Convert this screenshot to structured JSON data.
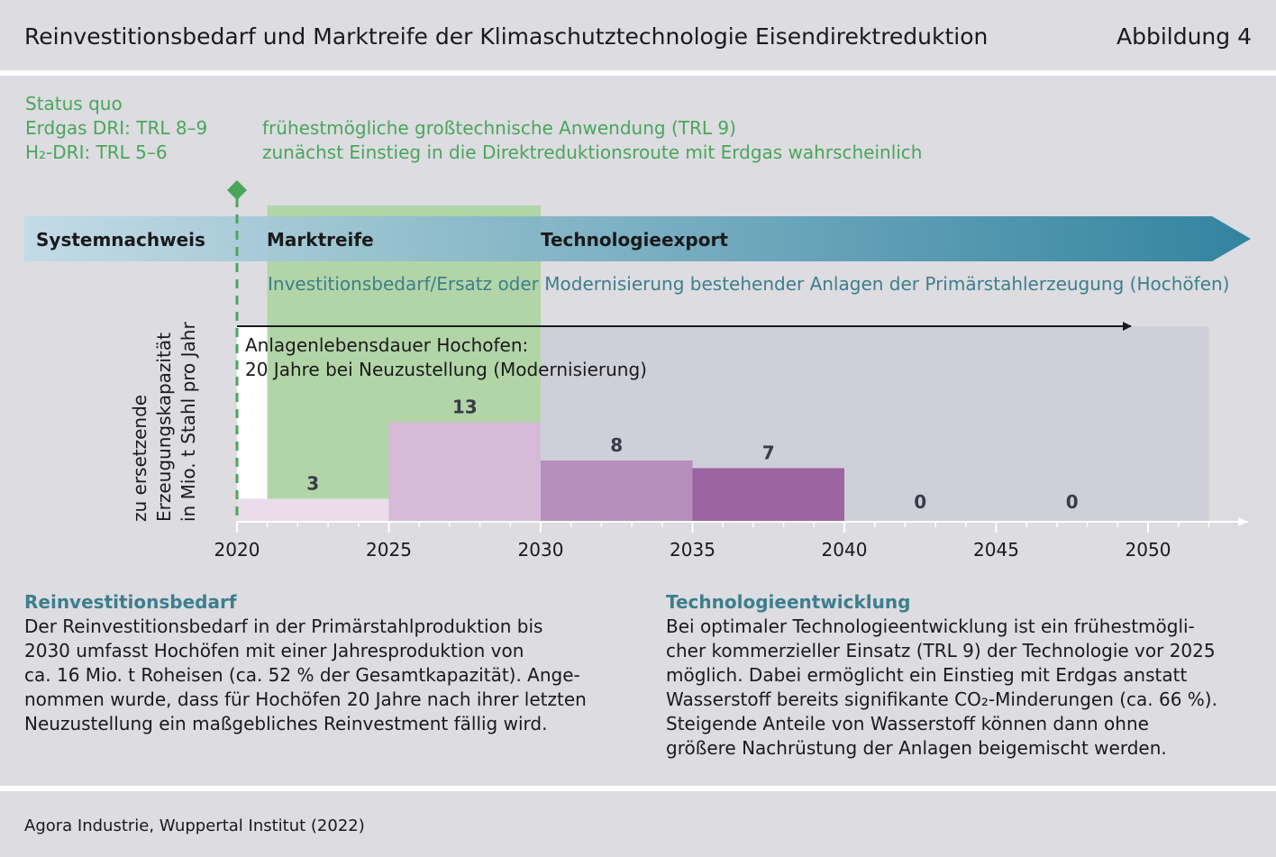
{
  "header": {
    "title": "Reinvestitionsbedarf und Marktreife der Klimaschutztechnologie Eisendirektreduktion",
    "figure_label": "Abbildung 4"
  },
  "status": {
    "line1": "Status quo",
    "line2": "Erdgas DRI: TRL 8–9",
    "line3": "H₂-DRI: TRL 5–6",
    "note1": "frühestmögliche großtechnische Anwendung (TRL 9)",
    "note2": "zunächst Einstieg in die Direktreduktionsroute mit Erdgas wahrscheinlich"
  },
  "colors": {
    "green": "#4aa65a",
    "green_band": "#b2d5a8",
    "arrow_start": "#c2dbe6",
    "arrow_end": "#2a7f9c",
    "teal_text": "#3d7e8c",
    "bg_panel": "#cfcfd9"
  },
  "phases": {
    "systemnachweis": "Systemnachweis",
    "marktreife": "Marktreife",
    "technologieexport": "Technologieexport"
  },
  "invest_label": "Investitionsbedarf/Ersatz oder Modernisierung bestehender Anlagen der Primärstahlerzeugung (Hochöfen)",
  "lifetime": {
    "line1": "Anlagenlebensdauer Hochofen:",
    "line2": "20 Jahre bei Neuzustellung (Modernisierung)"
  },
  "chart_data": {
    "type": "bar",
    "ylabel_lines": [
      "zu ersetzende",
      "Erzeugungskapazität",
      "in Mio. t Stahl pro Jahr"
    ],
    "x_ticks": [
      2020,
      2025,
      2030,
      2035,
      2040,
      2045,
      2050
    ],
    "bars": [
      {
        "start": 2020,
        "end": 2025,
        "value": 3,
        "color": "#eadcea"
      },
      {
        "start": 2025,
        "end": 2030,
        "value": 13,
        "color": "#d5bbd7"
      },
      {
        "start": 2030,
        "end": 2035,
        "value": 8,
        "color": "#b68dbb"
      },
      {
        "start": 2035,
        "end": 2040,
        "value": 7,
        "color": "#9b65a2"
      },
      {
        "start": 2040,
        "end": 2045,
        "value": 0,
        "color": "none"
      },
      {
        "start": 2045,
        "end": 2050,
        "value": 0,
        "color": "none"
      }
    ],
    "status_quo_year": 2020,
    "marktreife_band": [
      2021,
      2030
    ]
  },
  "left_text": {
    "title": "Reinvestitionsbedarf",
    "lines": [
      "Der Reinvestitionsbedarf in der Primärstahlproduktion bis",
      "2030 umfasst Hochöfen mit einer Jahresproduktion von",
      "ca. 16 Mio. t Roheisen (ca. 52 % der Gesamtkapazität). Ange-",
      "nommen wurde, dass für Hochöfen 20 Jahre nach ihrer letzten",
      "Neuzustellung ein maßgebliches Reinvestment fällig wird."
    ]
  },
  "right_text": {
    "title": "Technologieentwicklung",
    "lines": [
      "Bei optimaler Technologieentwicklung ist ein frühestmögli-",
      "cher kommerzieller Einsatz (TRL 9) der Technologie vor 2025",
      "möglich. Dabei ermöglicht ein Einstieg mit Erdgas anstatt",
      "Wasserstoff bereits signifikante CO₂-Minderungen (ca. 66 %).",
      "Steigende Anteile von Wasserstoff können dann ohne",
      "größere Nachrüstung der Anlagen beigemischt werden."
    ]
  },
  "footer": {
    "source": "Agora Industrie, Wuppertal Institut (2022)"
  }
}
